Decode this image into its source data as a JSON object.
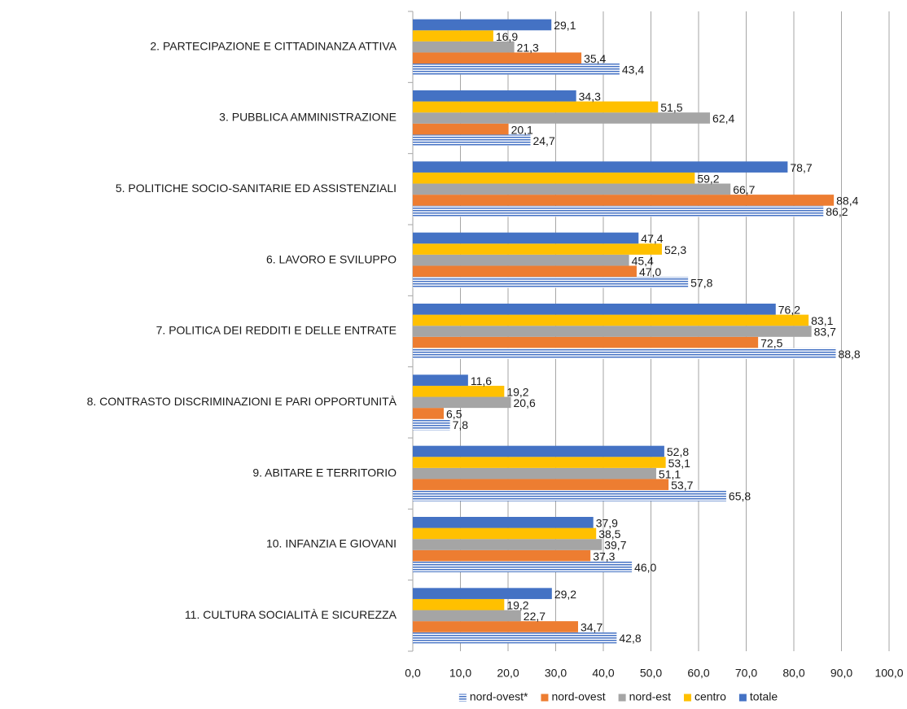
{
  "chart_data": {
    "type": "bar",
    "orientation": "horizontal",
    "categories": [
      "2. PARTECIPAZIONE E CITTADINANZA ATTIVA",
      "3. PUBBLICA AMMINISTRAZIONE",
      "5. POLITICHE SOCIO-SANITARIE ED ASSISTENZIALI",
      "6. LAVORO E  SVILUPPO",
      "7. POLITICA DEI REDDITI E DELLE ENTRATE",
      "8. CONTRASTO DISCRIMINAZIONI E PARI OPPORTUNITÀ",
      "9. ABITARE E TERRITORIO",
      "10. INFANZIA E GIOVANI",
      "11. CULTURA SOCIALITÀ E SICUREZZA"
    ],
    "series": [
      {
        "name": "nord-ovest*",
        "color": "#4472c4",
        "hatch": true,
        "values": [
          43.4,
          24.7,
          86.2,
          57.8,
          88.8,
          7.8,
          65.8,
          46.0,
          42.8
        ],
        "value_labels": [
          "43,4",
          "24,7",
          "86,2",
          "57,8",
          "88,8",
          "7,8",
          "65,8",
          "46,0",
          "42,8"
        ]
      },
      {
        "name": "nord-ovest",
        "color": "#ed7d31",
        "values": [
          35.4,
          20.1,
          88.4,
          47.0,
          72.5,
          6.5,
          53.7,
          37.3,
          34.7
        ],
        "value_labels": [
          "35,4",
          "20,1",
          "88,4",
          "47,0",
          "72,5",
          "6,5",
          "53,7",
          "37,3",
          "34,7"
        ]
      },
      {
        "name": "nord-est",
        "color": "#a5a5a5",
        "values": [
          21.3,
          62.4,
          66.7,
          45.4,
          83.7,
          20.6,
          51.1,
          39.7,
          22.7
        ],
        "value_labels": [
          "21,3",
          "62,4",
          "66,7",
          "45,4",
          "83,7",
          "20,6",
          "51,1",
          "39,7",
          "22,7"
        ]
      },
      {
        "name": "centro",
        "color": "#ffc000",
        "values": [
          16.9,
          51.5,
          59.2,
          52.3,
          83.1,
          19.2,
          53.1,
          38.5,
          19.2
        ],
        "value_labels": [
          "16,9",
          "51,5",
          "59,2",
          "52,3",
          "83,1",
          "19,2",
          "53,1",
          "38,5",
          "19,2"
        ]
      },
      {
        "name": "totale",
        "color": "#4472c4",
        "values": [
          29.1,
          34.3,
          78.7,
          47.4,
          76.2,
          11.6,
          52.8,
          37.9,
          29.2
        ],
        "value_labels": [
          "29,1",
          "34,3",
          "78,7",
          "47,4",
          "76,2",
          "11,6",
          "52,8",
          "37,9",
          "29,2"
        ]
      }
    ],
    "xlim": [
      0,
      100
    ],
    "xticks": [
      {
        "value": 0,
        "label": "0,0"
      },
      {
        "value": 10,
        "label": "10,0"
      },
      {
        "value": 20,
        "label": "20,0"
      },
      {
        "value": 30,
        "label": "30,0"
      },
      {
        "value": 40,
        "label": "40,0"
      },
      {
        "value": 50,
        "label": "50,0"
      },
      {
        "value": 60,
        "label": "60,0"
      },
      {
        "value": 70,
        "label": "70,0"
      },
      {
        "value": 80,
        "label": "80,0"
      },
      {
        "value": 90,
        "label": "90,0"
      },
      {
        "value": 100,
        "label": "100,0"
      }
    ],
    "grid": true,
    "legend": "bottom"
  }
}
